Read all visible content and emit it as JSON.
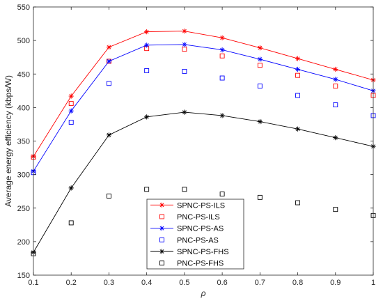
{
  "chart_data": {
    "type": "line",
    "title": "",
    "xlabel": "ρ",
    "ylabel": "Average energy efficiency (kbps/W)",
    "xlim": [
      0.1,
      1
    ],
    "ylim": [
      150,
      550
    ],
    "x": [
      0.1,
      0.2,
      0.3,
      0.4,
      0.5,
      0.6,
      0.7,
      0.8,
      0.9,
      1
    ],
    "xticks": [
      "0.1",
      "0.2",
      "0.3",
      "0.4",
      "0.5",
      "0.6",
      "0.7",
      "0.8",
      "0.9",
      "1"
    ],
    "yticks": [
      "150",
      "200",
      "250",
      "300",
      "350",
      "400",
      "450",
      "500",
      "550"
    ],
    "grid": false,
    "legend_position": "bottom-center",
    "series": [
      {
        "name": "SPNC-PS-ILS",
        "color": "#ff0000",
        "marker": "asterisk",
        "line": true,
        "values": [
          327,
          417,
          490,
          513,
          514,
          504,
          489,
          473,
          457,
          441
        ]
      },
      {
        "name": "PNC-PS-ILS",
        "color": "#ff0000",
        "marker": "square",
        "line": false,
        "values": [
          326,
          406,
          469,
          488,
          487,
          477,
          463,
          448,
          432,
          418
        ]
      },
      {
        "name": "SPNC-PS-AS",
        "color": "#0000ff",
        "marker": "asterisk",
        "line": true,
        "values": [
          305,
          395,
          469,
          493,
          494,
          486,
          472,
          457,
          442,
          425
        ]
      },
      {
        "name": "PNC-PS-AS",
        "color": "#0000ff",
        "marker": "square",
        "line": false,
        "values": [
          303,
          378,
          436,
          455,
          454,
          444,
          432,
          418,
          404,
          388
        ]
      },
      {
        "name": "SPNC-PS-FHS",
        "color": "#000000",
        "marker": "asterisk",
        "line": true,
        "values": [
          184,
          280,
          359,
          386,
          393,
          388,
          379,
          368,
          355,
          342
        ]
      },
      {
        "name": "PNC-PS-FHS",
        "color": "#000000",
        "marker": "square",
        "line": false,
        "values": [
          182,
          228,
          268,
          278,
          278,
          271,
          266,
          258,
          248,
          239
        ]
      }
    ]
  }
}
